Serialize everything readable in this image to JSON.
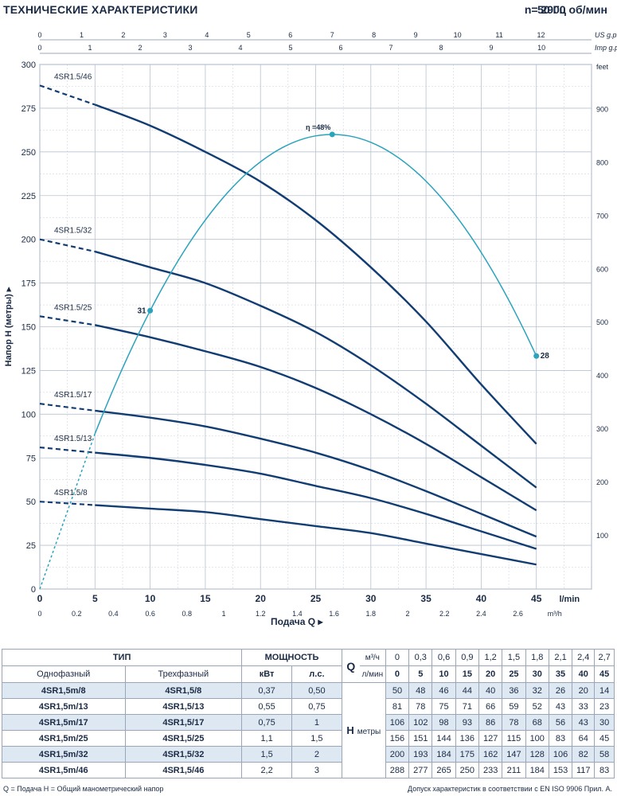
{
  "header": {
    "title": "ТЕХНИЧЕСКИЕ ХАРАКТЕРИСТИКИ",
    "frequency": "50 Гц",
    "speed": "n= 2900 об/мин"
  },
  "chart_data": {
    "type": "line",
    "xlabel": "Подача Q",
    "ylabel": "Напор H (метры)",
    "x_unit": "l/min",
    "x_unit_m3h": "m³/h",
    "y_unit_feet": "feet",
    "top_unit_us": "US g.p.m.",
    "top_unit_imp": "Imp g.p.m.",
    "xlim": [
      0,
      50
    ],
    "ylim": [
      0,
      300
    ],
    "x_ticks": [
      0,
      5,
      10,
      15,
      20,
      25,
      30,
      35,
      40,
      45
    ],
    "x_ticks_m3h": [
      "0",
      "0.2",
      "0.4",
      "0.6",
      "0.8",
      "1",
      "1.2",
      "1.4",
      "1.6",
      "1.8",
      "2",
      "2.2",
      "2.4",
      "2.6",
      "m³/h"
    ],
    "y_ticks": [
      0,
      25,
      50,
      75,
      100,
      125,
      150,
      175,
      200,
      225,
      250,
      275,
      300
    ],
    "feet_ticks": [
      100,
      200,
      300,
      400,
      500,
      600,
      700,
      800,
      900
    ],
    "us_gpm_ticks": [
      0,
      1,
      2,
      3,
      4,
      5,
      6,
      7,
      8,
      9,
      10,
      11,
      12
    ],
    "imp_gpm_ticks": [
      0,
      1,
      2,
      3,
      4,
      5,
      6,
      7,
      8,
      9,
      10
    ],
    "grid": true,
    "series": [
      {
        "name": "4SR1.5/8",
        "x": [
          0,
          5,
          10,
          15,
          20,
          25,
          30,
          35,
          40,
          45
        ],
        "values": [
          50,
          48,
          46,
          44,
          40,
          36,
          32,
          26,
          20,
          14
        ],
        "dashed_to": 5
      },
      {
        "name": "4SR1.5/13",
        "x": [
          0,
          5,
          10,
          15,
          20,
          25,
          30,
          35,
          40,
          45
        ],
        "values": [
          81,
          78,
          75,
          71,
          66,
          59,
          52,
          43,
          33,
          23
        ],
        "dashed_to": 5
      },
      {
        "name": "4SR1.5/17",
        "x": [
          0,
          5,
          10,
          15,
          20,
          25,
          30,
          35,
          40,
          45
        ],
        "values": [
          106,
          102,
          98,
          93,
          86,
          78,
          68,
          56,
          43,
          30
        ],
        "dashed_to": 5
      },
      {
        "name": "4SR1.5/25",
        "x": [
          0,
          5,
          10,
          15,
          20,
          25,
          30,
          35,
          40,
          45
        ],
        "values": [
          156,
          151,
          144,
          136,
          127,
          115,
          100,
          83,
          64,
          45
        ],
        "dashed_to": 5
      },
      {
        "name": "4SR1.5/32",
        "x": [
          0,
          5,
          10,
          15,
          20,
          25,
          30,
          35,
          40,
          45
        ],
        "values": [
          200,
          193,
          184,
          175,
          162,
          147,
          128,
          106,
          82,
          58
        ],
        "dashed_to": 5
      },
      {
        "name": "4SR1.5/46",
        "x": [
          0,
          5,
          10,
          15,
          20,
          25,
          30,
          35,
          40,
          45
        ],
        "values": [
          288,
          277,
          265,
          250,
          233,
          211,
          184,
          153,
          117,
          83
        ],
        "dashed_to": 5
      }
    ],
    "efficiency": {
      "label": "η =48%",
      "peak_x": 26.5,
      "peak": 48,
      "points": [
        {
          "x": 10,
          "label": "31"
        },
        {
          "x": 45,
          "label": "28"
        }
      ]
    }
  },
  "table": {
    "col_type": "ТИП",
    "col_power": "МОЩНОСТЬ",
    "q_label": "Q",
    "h_label": "H",
    "h_unit": "метры",
    "single_phase": "Однофазный",
    "three_phase": "Трехфазный",
    "kw": "кВт",
    "hp": "л.с.",
    "unit_m3h": "м³/ч",
    "unit_lmin": "л/мин",
    "q_m3h": [
      "0",
      "0,3",
      "0,6",
      "0,9",
      "1,2",
      "1,5",
      "1,8",
      "2,1",
      "2,4",
      "2,7"
    ],
    "q_lmin": [
      "0",
      "5",
      "10",
      "15",
      "20",
      "25",
      "30",
      "35",
      "40",
      "45"
    ],
    "rows": [
      {
        "single": "4SR1,5m/8",
        "three": "4SR1,5/8",
        "kw": "0,37",
        "hp": "0,50",
        "h": [
          "50",
          "48",
          "46",
          "44",
          "40",
          "36",
          "32",
          "26",
          "20",
          "14"
        ]
      },
      {
        "single": "4SR1,5m/13",
        "three": "4SR1,5/13",
        "kw": "0,55",
        "hp": "0,75",
        "h": [
          "81",
          "78",
          "75",
          "71",
          "66",
          "59",
          "52",
          "43",
          "33",
          "23"
        ]
      },
      {
        "single": "4SR1,5m/17",
        "three": "4SR1,5/17",
        "kw": "0,75",
        "hp": "1",
        "h": [
          "106",
          "102",
          "98",
          "93",
          "86",
          "78",
          "68",
          "56",
          "43",
          "30"
        ]
      },
      {
        "single": "4SR1,5m/25",
        "three": "4SR1,5/25",
        "kw": "1,1",
        "hp": "1,5",
        "h": [
          "156",
          "151",
          "144",
          "136",
          "127",
          "115",
          "100",
          "83",
          "64",
          "45"
        ]
      },
      {
        "single": "4SR1,5m/32",
        "three": "4SR1,5/32",
        "kw": "1,5",
        "hp": "2",
        "h": [
          "200",
          "193",
          "184",
          "175",
          "162",
          "147",
          "128",
          "106",
          "82",
          "58"
        ]
      },
      {
        "single": "4SR1,5m/46",
        "three": "4SR1,5/46",
        "kw": "2,2",
        "hp": "3",
        "h": [
          "288",
          "277",
          "265",
          "250",
          "233",
          "211",
          "184",
          "153",
          "117",
          "83"
        ]
      }
    ]
  },
  "footer": {
    "left": "Q = Подача  H = Общий манометрический напор",
    "right": "Допуск характеристик в соответствии с EN ISO 9906 Прил. A."
  },
  "colors": {
    "curve": "#123d73",
    "efficiency": "#2aa3bd",
    "grid": "#b9c2cf",
    "text": "#1a2a44"
  }
}
